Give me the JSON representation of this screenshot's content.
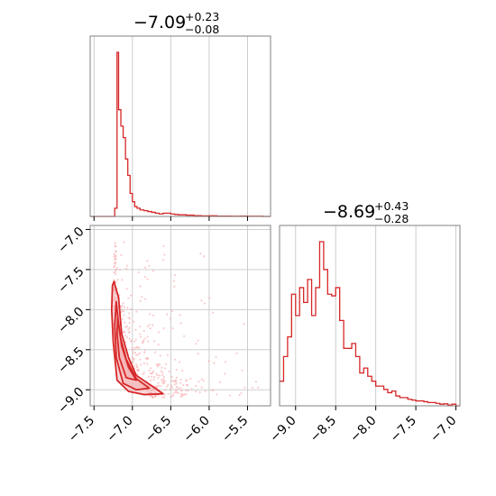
{
  "colors": {
    "hist": "#d62728",
    "contour_line": "#d62728",
    "contour_fill": "#f4b6b8",
    "scatter": "#f5a3a6",
    "grid": "#c8c8c8",
    "spine": "#808080"
  },
  "chart_data": [
    {
      "type": "histogram",
      "panel": "top-left",
      "title": {
        "median": "−7.09",
        "plus": "+0.23",
        "minus": "−0.08"
      },
      "xlim": [
        -7.55,
        -5.2
      ],
      "xticks": [
        -7.5,
        -7.0,
        -6.5,
        -6.0,
        -5.5
      ],
      "grid": true,
      "hist_step": {
        "x": [
          -7.55,
          -7.3,
          -7.23,
          -7.2,
          -7.18,
          -7.15,
          -7.12,
          -7.09,
          -7.06,
          -7.03,
          -7.0,
          -6.97,
          -6.94,
          -6.9,
          -6.85,
          -6.8,
          -6.75,
          -6.7,
          -6.65,
          -6.6,
          -6.55,
          -6.5,
          -6.45,
          -6.4,
          -6.3,
          -6.2,
          -6.1,
          -6.0,
          -5.9,
          -5.8,
          -5.7,
          -5.6,
          -5.5,
          -5.4,
          -5.3,
          -5.2
        ],
        "density": [
          0.0,
          0.0,
          0.05,
          1.0,
          0.65,
          0.55,
          0.48,
          0.35,
          0.25,
          0.14,
          0.09,
          0.06,
          0.05,
          0.04,
          0.035,
          0.03,
          0.025,
          0.02,
          0.015,
          0.02,
          0.02,
          0.015,
          0.012,
          0.01,
          0.008,
          0.005,
          0.003,
          0.004,
          0.002,
          0.002,
          0.001,
          0.002,
          0.001,
          0.001,
          0.0
        ]
      }
    },
    {
      "type": "contour",
      "panel": "bottom-left",
      "xlim": [
        -7.55,
        -5.2
      ],
      "ylim": [
        -9.2,
        -6.95
      ],
      "xticks": [
        -7.5,
        -7.0,
        -6.5,
        -6.0,
        -5.5
      ],
      "yticks": [
        -7.0,
        -7.5,
        -8.0,
        -8.5,
        -9.0
      ],
      "grid": true,
      "contours": [
        {
          "level": "outer",
          "points": [
            [
              -7.24,
              -7.65
            ],
            [
              -7.18,
              -7.85
            ],
            [
              -7.14,
              -8.3
            ],
            [
              -7.05,
              -8.6
            ],
            [
              -6.95,
              -8.82
            ],
            [
              -6.75,
              -8.95
            ],
            [
              -6.6,
              -9.05
            ],
            [
              -6.85,
              -9.06
            ],
            [
              -7.05,
              -9.02
            ],
            [
              -7.2,
              -8.88
            ],
            [
              -7.25,
              -8.4
            ],
            [
              -7.27,
              -8.0
            ],
            [
              -7.26,
              -7.7
            ]
          ]
        },
        {
          "level": "middle",
          "points": [
            [
              -7.21,
              -7.9
            ],
            [
              -7.17,
              -8.3
            ],
            [
              -7.08,
              -8.62
            ],
            [
              -6.95,
              -8.86
            ],
            [
              -6.78,
              -8.98
            ],
            [
              -6.95,
              -9.0
            ],
            [
              -7.12,
              -8.92
            ],
            [
              -7.21,
              -8.6
            ],
            [
              -7.23,
              -8.2
            ]
          ]
        },
        {
          "level": "inner",
          "points": [
            [
              -7.19,
              -8.1
            ],
            [
              -7.14,
              -8.45
            ],
            [
              -7.05,
              -8.72
            ],
            [
              -6.95,
              -8.88
            ],
            [
              -7.08,
              -8.85
            ],
            [
              -7.17,
              -8.6
            ],
            [
              -7.2,
              -8.3
            ]
          ]
        }
      ]
    },
    {
      "type": "histogram",
      "panel": "bottom-right",
      "title": {
        "median": "−8.69",
        "plus": "+0.43",
        "minus": "−0.28"
      },
      "xlim": [
        -9.2,
        -6.95
      ],
      "xticks": [
        -9.0,
        -8.5,
        -8.0,
        -7.5,
        -7.0
      ],
      "grid": true,
      "hist_step": {
        "x": [
          -9.2,
          -9.15,
          -9.1,
          -9.05,
          -9.0,
          -8.95,
          -8.9,
          -8.85,
          -8.8,
          -8.75,
          -8.7,
          -8.65,
          -8.6,
          -8.55,
          -8.5,
          -8.45,
          -8.4,
          -8.35,
          -8.3,
          -8.25,
          -8.2,
          -8.15,
          -8.1,
          -8.05,
          -8.0,
          -7.95,
          -7.9,
          -7.85,
          -7.8,
          -7.75,
          -7.7,
          -7.65,
          -7.6,
          -7.55,
          -7.5,
          -7.45,
          -7.4,
          -7.35,
          -7.3,
          -7.25,
          -7.2,
          -7.15,
          -7.1,
          -7.05,
          -7.0,
          -6.95
        ],
        "density": [
          0.15,
          0.3,
          0.42,
          0.68,
          0.55,
          0.72,
          0.63,
          0.77,
          0.55,
          0.72,
          1.0,
          0.83,
          0.68,
          0.67,
          0.72,
          0.52,
          0.35,
          0.35,
          0.38,
          0.3,
          0.2,
          0.23,
          0.18,
          0.15,
          0.12,
          0.12,
          0.1,
          0.08,
          0.09,
          0.06,
          0.05,
          0.05,
          0.04,
          0.035,
          0.03,
          0.03,
          0.025,
          0.02,
          0.02,
          0.015,
          0.01,
          0.012,
          0.005,
          0.01,
          0.0
        ]
      }
    }
  ]
}
